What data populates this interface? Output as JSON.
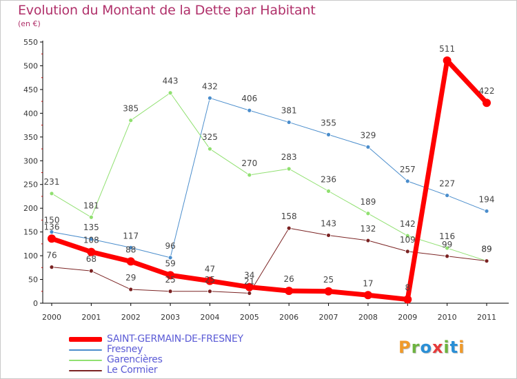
{
  "header": {
    "title": "Evolution du Montant de la Dette par Habitant",
    "subtitle": "(en €)"
  },
  "logo": {
    "text": "Proxiti",
    "colors": [
      "#f09a2a",
      "#6db33f",
      "#2a8fd6",
      "#e63a3a",
      "#6db33f",
      "#2a8fd6",
      "#f09a2a"
    ]
  },
  "chart_data": {
    "type": "line",
    "x": [
      "2000",
      "2001",
      "2002",
      "2003",
      "2004",
      "2005",
      "2006",
      "2007",
      "2008",
      "2009",
      "2010",
      "2011"
    ],
    "ylim": [
      0,
      550
    ],
    "yticks": [
      0,
      50,
      100,
      150,
      200,
      250,
      300,
      350,
      400,
      450,
      500,
      550
    ],
    "grid": false,
    "legend_position": "bottom-left",
    "series": [
      {
        "name": "SAINT-GERMAIN-DE-FRESNEY",
        "color": "#ff0000",
        "width": 7,
        "values": [
          136,
          108,
          88,
          59,
          47,
          34,
          26,
          25,
          17,
          8,
          511,
          422
        ]
      },
      {
        "name": "Fresney",
        "color": "#4a8dcc",
        "width": 1,
        "values": [
          150,
          135,
          117,
          96,
          432,
          406,
          381,
          355,
          329,
          257,
          227,
          194
        ]
      },
      {
        "name": "Garencières",
        "color": "#90e070",
        "width": 1,
        "values": [
          231,
          181,
          385,
          443,
          325,
          270,
          283,
          236,
          189,
          142,
          116,
          89
        ]
      },
      {
        "name": "Le Cormier",
        "color": "#7a2222",
        "width": 1,
        "values": [
          76,
          68,
          29,
          25,
          25,
          21,
          158,
          143,
          132,
          109,
          99,
          89
        ]
      }
    ]
  }
}
